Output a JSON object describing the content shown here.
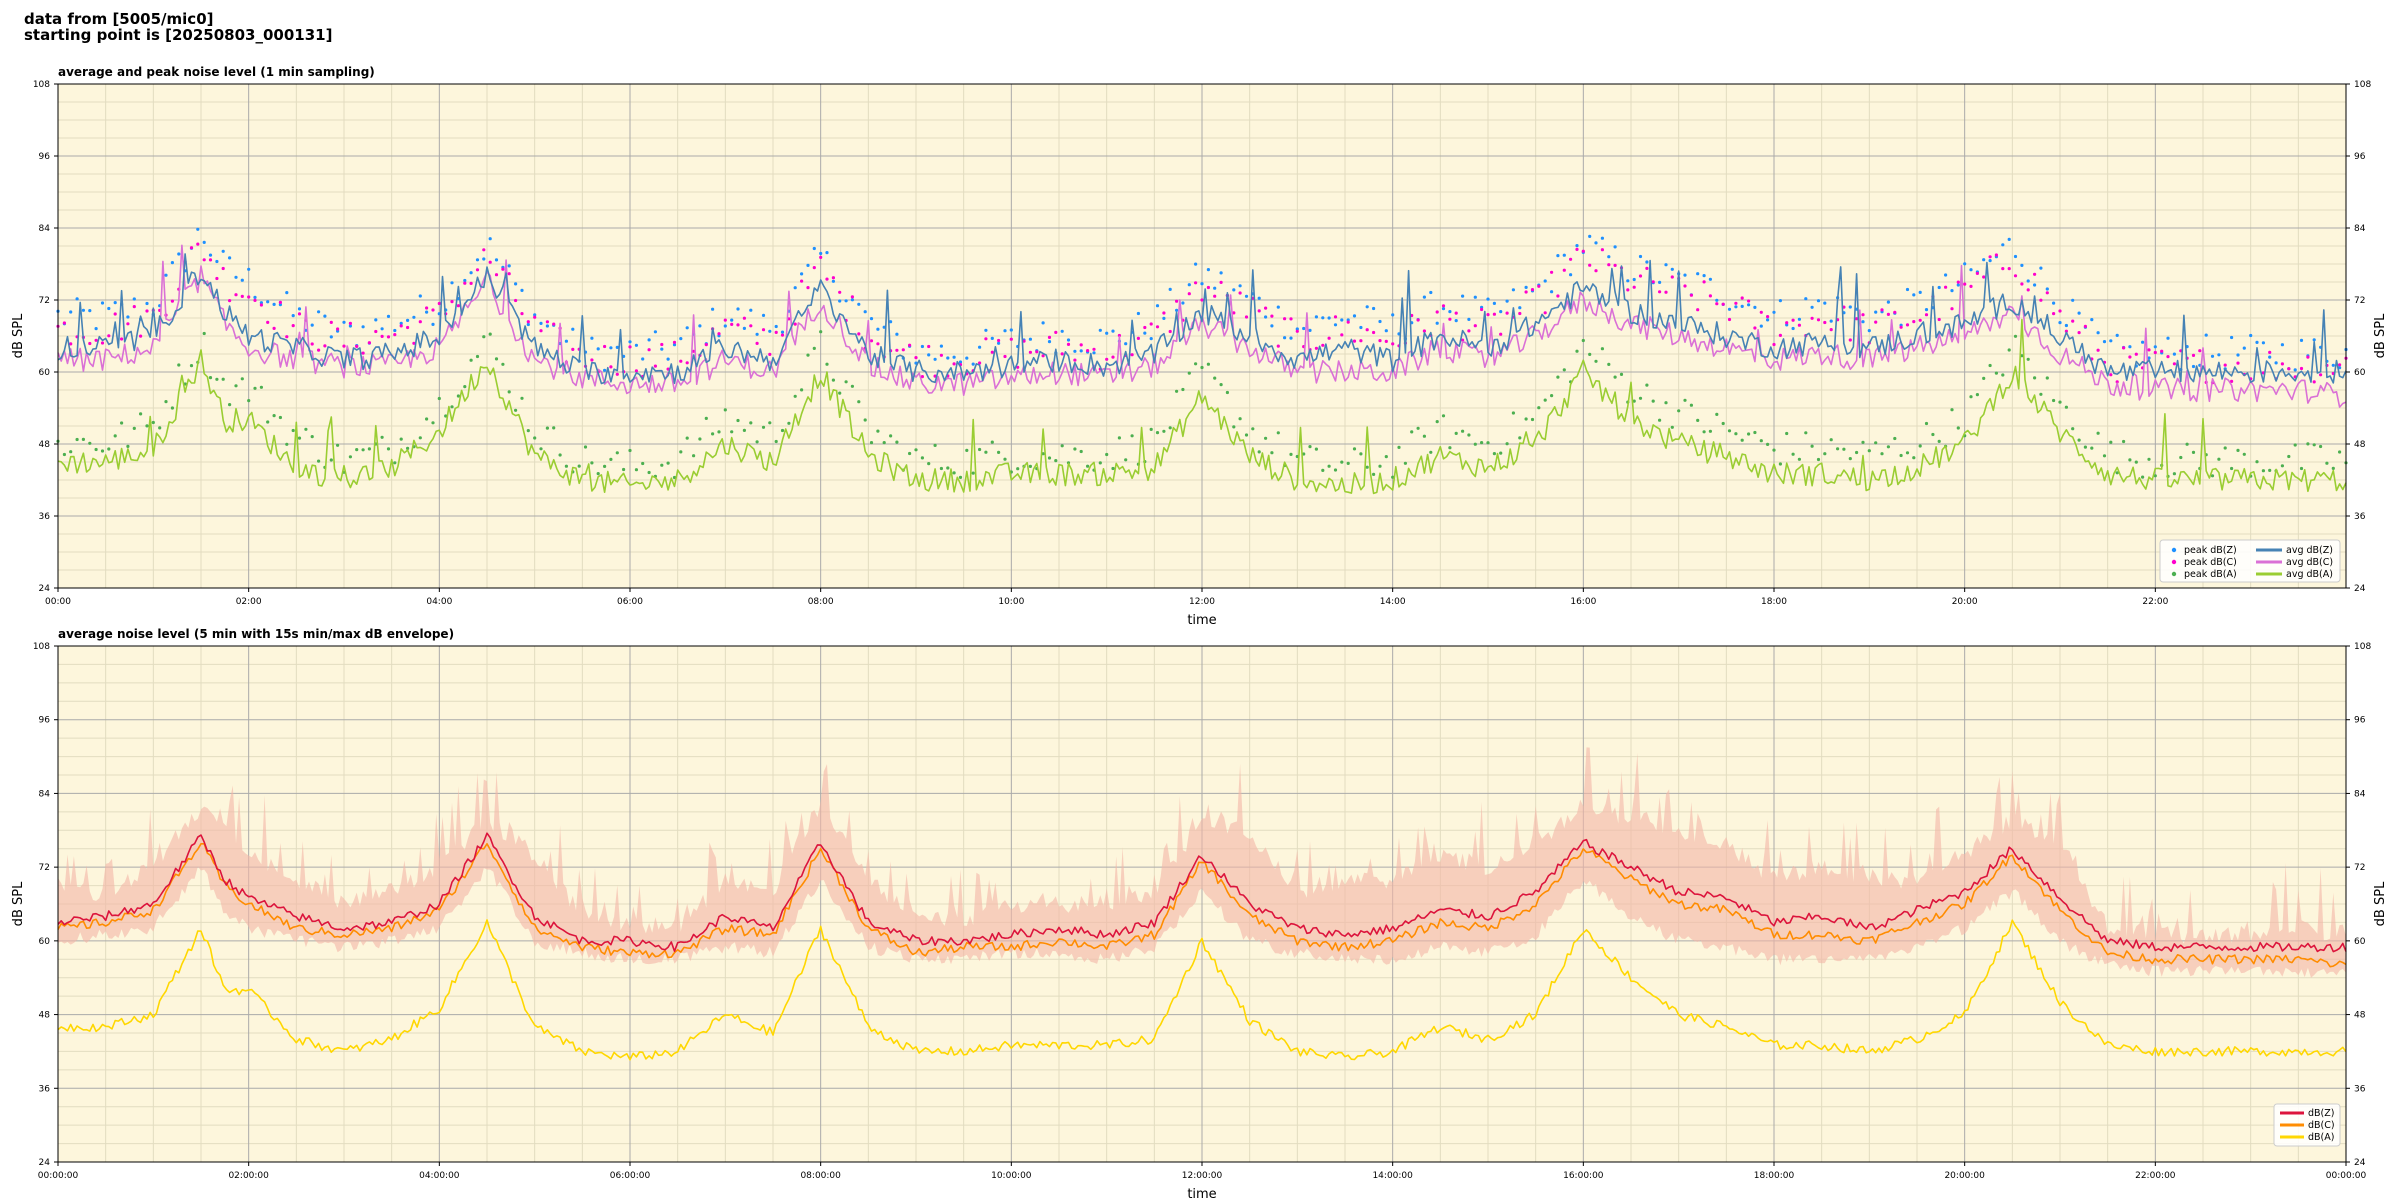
{
  "header": {
    "line1": "data from [5005/mic0]",
    "line2": "starting point is [20250803_000131]"
  },
  "colors": {
    "plot_bg": "#fdf6dc",
    "grid_major": "#aaaaaa",
    "grid_minor": "#e2dcc0",
    "peak_z": "#1e90ff",
    "peak_c": "#ff00cc",
    "peak_a": "#4caf50",
    "avg_z": "#4682b4",
    "avg_c": "#da70d6",
    "avg_a": "#9acd32",
    "dbz": "#dc143c",
    "dbc": "#ff8c00",
    "dba": "#ffd700",
    "envelope": "#f4b6a6"
  },
  "chart_data": [
    {
      "type": "line",
      "title": "average and peak noise level (1 min sampling)",
      "xlabel": "time",
      "ylabel": "dB SPL",
      "ylim": [
        24,
        108
      ],
      "yticks": [
        24,
        36,
        48,
        60,
        72,
        84,
        96,
        108
      ],
      "xlim_hours": [
        0,
        24
      ],
      "xtick_labels": [
        "00:00",
        "02:00",
        "04:00",
        "06:00",
        "08:00",
        "10:00",
        "12:00",
        "14:00",
        "16:00",
        "18:00",
        "20:00",
        "22:00"
      ],
      "grid": true,
      "legend_position": "lower-right",
      "legend_entries": [
        "peak dB(Z)",
        "peak dB(C)",
        "peak dB(A)",
        "avg dB(Z)",
        "avg dB(C)",
        "avg dB(A)"
      ],
      "x_hours": [
        0,
        0.5,
        1.0,
        1.5,
        1.75,
        2.0,
        2.5,
        3.0,
        3.5,
        4.0,
        4.5,
        5.0,
        5.5,
        6.0,
        6.5,
        7.0,
        7.5,
        8.0,
        8.5,
        9.0,
        9.5,
        10.0,
        10.5,
        11.0,
        11.5,
        12.0,
        12.5,
        13.0,
        13.5,
        14.0,
        14.5,
        15.0,
        15.5,
        16.0,
        16.5,
        17.0,
        17.5,
        18.0,
        18.5,
        19.0,
        19.5,
        20.0,
        20.5,
        21.0,
        21.5,
        22.0,
        22.5,
        23.0,
        23.5,
        24.0
      ],
      "series": [
        {
          "name": "avg dB(Z)",
          "kind": "line",
          "values": [
            64,
            64,
            66,
            77,
            70,
            66,
            64,
            62,
            63,
            66,
            76,
            64,
            60,
            60,
            60,
            64,
            62,
            74,
            63,
            60,
            60,
            61,
            62,
            61,
            63,
            70,
            66,
            62,
            64,
            62,
            66,
            64,
            68,
            74,
            70,
            68,
            66,
            64,
            65,
            64,
            66,
            68,
            72,
            66,
            60,
            60,
            60,
            60,
            60,
            60
          ]
        },
        {
          "name": "avg dB(C)",
          "kind": "line",
          "values": [
            62,
            62,
            64,
            76,
            68,
            64,
            62,
            61,
            61,
            64,
            75,
            62,
            59,
            58,
            58,
            62,
            60,
            72,
            61,
            58,
            58,
            59,
            60,
            59,
            61,
            68,
            64,
            60,
            60,
            60,
            64,
            62,
            66,
            72,
            68,
            66,
            64,
            62,
            63,
            62,
            64,
            66,
            70,
            63,
            58,
            57,
            57,
            57,
            57,
            56
          ]
        },
        {
          "name": "avg dB(A)",
          "kind": "line",
          "values": [
            45,
            45,
            47,
            62,
            52,
            52,
            44,
            42,
            44,
            50,
            62,
            46,
            42,
            41,
            42,
            48,
            45,
            60,
            46,
            42,
            42,
            43,
            43,
            43,
            44,
            56,
            46,
            42,
            41,
            42,
            46,
            44,
            48,
            60,
            52,
            48,
            46,
            43,
            43,
            42,
            44,
            48,
            60,
            50,
            43,
            42,
            42,
            42,
            42,
            42
          ]
        },
        {
          "name": "peak dB(Z)",
          "kind": "scatter",
          "values": [
            68,
            68,
            70,
            82,
            76,
            74,
            68,
            65,
            67,
            70,
            80,
            68,
            62,
            62,
            63,
            68,
            66,
            78,
            67,
            62,
            62,
            64,
            65,
            64,
            67,
            75,
            71,
            66,
            68,
            66,
            70,
            68,
            72,
            80,
            76,
            74,
            72,
            68,
            70,
            68,
            70,
            74,
            80,
            70,
            62,
            62,
            62,
            62,
            62,
            62
          ]
        },
        {
          "name": "peak dB(C)",
          "kind": "scatter",
          "values": [
            66,
            66,
            68,
            80,
            74,
            72,
            66,
            64,
            65,
            68,
            78,
            66,
            61,
            61,
            61,
            66,
            64,
            76,
            65,
            61,
            61,
            62,
            63,
            62,
            65,
            73,
            69,
            64,
            66,
            64,
            68,
            66,
            70,
            78,
            74,
            72,
            70,
            66,
            68,
            66,
            68,
            72,
            78,
            68,
            60,
            60,
            60,
            60,
            60,
            60
          ]
        },
        {
          "name": "peak dB(A)",
          "kind": "scatter",
          "values": [
            47,
            47,
            50,
            64,
            56,
            56,
            48,
            44,
            46,
            53,
            64,
            49,
            44,
            43,
            44,
            51,
            48,
            63,
            49,
            44,
            44,
            45,
            45,
            45,
            47,
            59,
            49,
            44,
            43,
            44,
            49,
            47,
            51,
            63,
            56,
            52,
            49,
            46,
            46,
            45,
            47,
            51,
            63,
            53,
            45,
            44,
            44,
            44,
            44,
            44
          ]
        }
      ]
    },
    {
      "type": "line",
      "title": "average noise level (5 min with 15s min/max dB envelope)",
      "xlabel": "time",
      "ylabel": "dB SPL",
      "ylim": [
        24,
        108
      ],
      "yticks": [
        24,
        36,
        48,
        60,
        72,
        84,
        96,
        108
      ],
      "xlim_hours": [
        0,
        24
      ],
      "xtick_labels": [
        "00:00:00",
        "02:00:00",
        "04:00:00",
        "06:00:00",
        "08:00:00",
        "10:00:00",
        "12:00:00",
        "14:00:00",
        "16:00:00",
        "18:00:00",
        "20:00:00",
        "22:00:00",
        "00:00:00"
      ],
      "grid": true,
      "legend_position": "lower-right",
      "legend_entries": [
        "dB(Z)",
        "dB(C)",
        "dB(A)"
      ],
      "x_hours": [
        0,
        0.5,
        1.0,
        1.5,
        1.75,
        2.0,
        2.5,
        3.0,
        3.5,
        4.0,
        4.5,
        5.0,
        5.5,
        6.0,
        6.5,
        7.0,
        7.5,
        8.0,
        8.5,
        9.0,
        9.5,
        10.0,
        10.5,
        11.0,
        11.5,
        12.0,
        12.5,
        13.0,
        13.5,
        14.0,
        14.5,
        15.0,
        15.5,
        16.0,
        16.5,
        17.0,
        17.5,
        18.0,
        18.5,
        19.0,
        19.5,
        20.0,
        20.5,
        21.0,
        21.5,
        22.0,
        22.5,
        23.0,
        23.5,
        24.0
      ],
      "series": [
        {
          "name": "dB(Z)",
          "kind": "line",
          "values": [
            63,
            64,
            66,
            77,
            70,
            67,
            64,
            62,
            63,
            66,
            77,
            64,
            60,
            60,
            59,
            64,
            62,
            76,
            63,
            60,
            60,
            61,
            62,
            61,
            63,
            74,
            66,
            62,
            61,
            62,
            65,
            64,
            68,
            76,
            72,
            68,
            67,
            63,
            64,
            62,
            65,
            68,
            75,
            67,
            60,
            59,
            59,
            59,
            59,
            59
          ]
        },
        {
          "name": "dB(C)",
          "kind": "line",
          "values": [
            62,
            63,
            65,
            76,
            69,
            66,
            62,
            61,
            62,
            65,
            76,
            62,
            59,
            58,
            58,
            62,
            61,
            75,
            62,
            58,
            59,
            59,
            60,
            59,
            61,
            73,
            64,
            60,
            59,
            60,
            63,
            62,
            66,
            75,
            70,
            66,
            65,
            61,
            61,
            60,
            63,
            66,
            74,
            65,
            58,
            57,
            57,
            57,
            57,
            56
          ]
        },
        {
          "name": "dB(A)",
          "kind": "line",
          "values": [
            46,
            46,
            48,
            62,
            52,
            52,
            44,
            42,
            44,
            49,
            63,
            46,
            42,
            41,
            42,
            48,
            45,
            62,
            46,
            42,
            42,
            43,
            43,
            43,
            44,
            60,
            47,
            42,
            41,
            42,
            46,
            44,
            48,
            62,
            54,
            48,
            46,
            43,
            43,
            42,
            44,
            48,
            63,
            50,
            43,
            42,
            42,
            42,
            42,
            42
          ]
        },
        {
          "name": "envelope max",
          "kind": "band-upper",
          "values": [
            68,
            68,
            72,
            82,
            80,
            74,
            70,
            66,
            68,
            72,
            80,
            74,
            64,
            63,
            62,
            70,
            68,
            82,
            70,
            64,
            63,
            66,
            66,
            66,
            68,
            80,
            78,
            68,
            70,
            70,
            74,
            72,
            76,
            82,
            80,
            78,
            76,
            70,
            72,
            70,
            70,
            74,
            80,
            76,
            62,
            61,
            61,
            61,
            62,
            61
          ]
        },
        {
          "name": "envelope min",
          "kind": "band-lower",
          "values": [
            60,
            61,
            62,
            72,
            65,
            62,
            60,
            59,
            60,
            62,
            72,
            60,
            58,
            57,
            57,
            59,
            58,
            70,
            59,
            57,
            57,
            58,
            58,
            57,
            59,
            68,
            60,
            58,
            57,
            57,
            59,
            58,
            61,
            70,
            64,
            60,
            59,
            57,
            57,
            57,
            59,
            62,
            68,
            60,
            56,
            55,
            55,
            55,
            55,
            55
          ]
        }
      ]
    }
  ]
}
